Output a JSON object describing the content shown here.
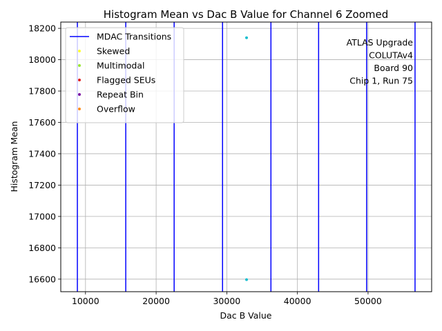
{
  "chart_data": {
    "type": "scatter",
    "title": "Histogram Mean vs Dac B Value for Channel 6 Zoomed",
    "xlabel": "Dac B Value",
    "ylabel": "Histogram Mean",
    "xlim": [
      6500,
      59000
    ],
    "ylim": [
      16520,
      18240
    ],
    "grid": true,
    "x_ticks": [
      10000,
      20000,
      30000,
      40000,
      50000
    ],
    "x_tick_labels": [
      "10000",
      "20000",
      "30000",
      "40000",
      "50000"
    ],
    "y_ticks": [
      16600,
      16800,
      17000,
      17200,
      17400,
      17600,
      17800,
      18000,
      18200
    ],
    "y_tick_labels": [
      "16600",
      "16800",
      "17000",
      "17200",
      "17400",
      "17600",
      "17800",
      "18000",
      "18200"
    ],
    "series": [
      {
        "name": "MDAC Transitions",
        "kind": "vline",
        "color": "#0000ff",
        "x": [
          8850,
          15700,
          22550,
          29400,
          36250,
          43000,
          49800,
          56650
        ]
      },
      {
        "name": "Skewed",
        "kind": "point",
        "color": "#ffff33",
        "x": [],
        "y": []
      },
      {
        "name": "Multimodal",
        "kind": "point",
        "color": "#99e633",
        "x": [],
        "y": []
      },
      {
        "name": "Flagged SEUs",
        "kind": "point",
        "color": "#e02020",
        "x": [],
        "y": []
      },
      {
        "name": "Repeat Bin",
        "kind": "point",
        "color": "#7a0fa0",
        "x": [],
        "y": []
      },
      {
        "name": "Overflow",
        "kind": "point",
        "color": "#ff8c1a",
        "x": [],
        "y": []
      }
    ],
    "unlabeled_points": {
      "color": "#17becf",
      "x": [
        32800,
        32800
      ],
      "y": [
        18140,
        16597
      ]
    },
    "legend_placement": "top-left",
    "annotation_lines": [
      "ATLAS Upgrade",
      "COLUTAv4",
      "Board 90",
      "Chip 1, Run 75"
    ],
    "annotation_placement": "top-right"
  }
}
